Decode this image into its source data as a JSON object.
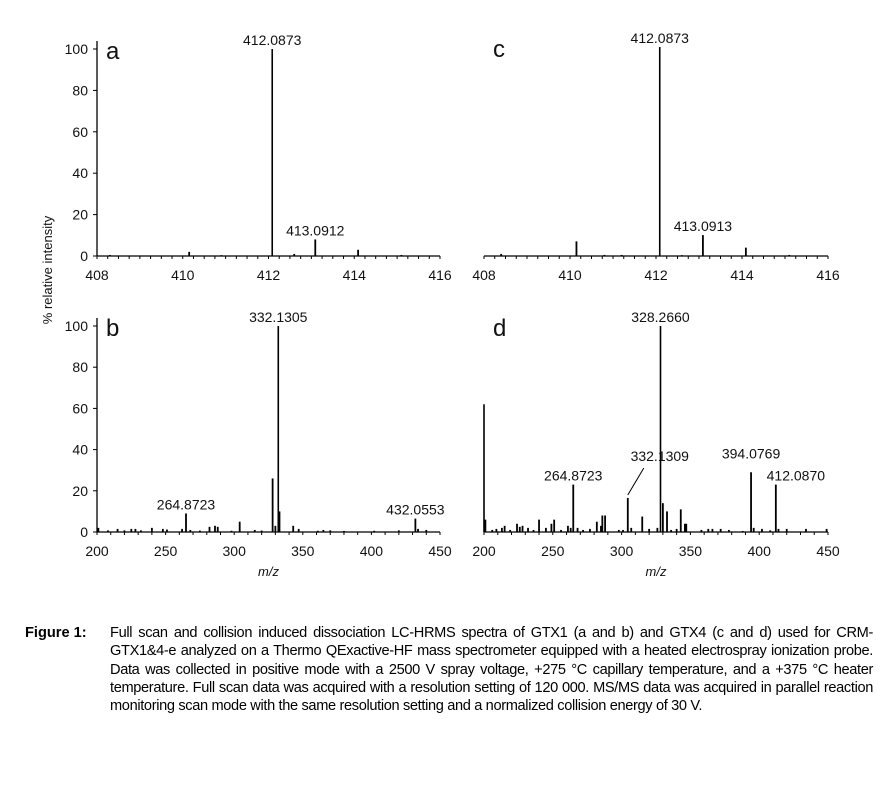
{
  "y_axis_label": "% relative intensity",
  "chart_data": [
    {
      "panel": "a",
      "type": "bar",
      "xlim": [
        408,
        416
      ],
      "ylim": [
        0,
        100
      ],
      "xticks": [
        "408",
        "410",
        "412",
        "414",
        "416"
      ],
      "yticks": [
        "0",
        "20",
        "40",
        "60",
        "80",
        "100"
      ],
      "xlabel": "",
      "ylabel": "% relative intensity",
      "peaks": [
        [
          408.3,
          0.5
        ],
        [
          410.15,
          2
        ],
        [
          410.9,
          0.4
        ],
        [
          412.087,
          100
        ],
        [
          412.6,
          1
        ],
        [
          413.091,
          8
        ],
        [
          414.09,
          3
        ],
        [
          415.1,
          0.5
        ]
      ],
      "annotations": [
        {
          "label": "412.0873",
          "x": 412.087,
          "y": 100
        },
        {
          "label": "413.0912",
          "x": 413.091,
          "y": 8
        }
      ]
    },
    {
      "panel": "c",
      "type": "bar",
      "xlim": [
        408,
        416
      ],
      "ylim": [
        0,
        100
      ],
      "xticks": [
        "408",
        "410",
        "412",
        "414",
        "416"
      ],
      "xlabel": "",
      "peaks": [
        [
          408.4,
          1
        ],
        [
          410.15,
          7
        ],
        [
          410.8,
          0.5
        ],
        [
          411.2,
          0.5
        ],
        [
          412.087,
          100
        ],
        [
          412.6,
          0.4
        ],
        [
          413.091,
          10
        ],
        [
          414.09,
          4
        ],
        [
          415.1,
          0.5
        ]
      ],
      "annotations": [
        {
          "label": "412.0873",
          "x": 412.087,
          "y": 100
        },
        {
          "label": "413.0913",
          "x": 413.091,
          "y": 10
        }
      ]
    },
    {
      "panel": "b",
      "type": "bar",
      "xlim": [
        200,
        450
      ],
      "ylim": [
        0,
        100
      ],
      "xticks": [
        "200",
        "250",
        "300",
        "350",
        "400",
        "450"
      ],
      "yticks": [
        "0",
        "20",
        "40",
        "60",
        "80",
        "100"
      ],
      "xlabel": "m/z",
      "peaks": [
        [
          201,
          2
        ],
        [
          208,
          0.8
        ],
        [
          215,
          1.5
        ],
        [
          220,
          0.8
        ],
        [
          225,
          1.5
        ],
        [
          228,
          1.5
        ],
        [
          232,
          0.8
        ],
        [
          240,
          2
        ],
        [
          248,
          1.5
        ],
        [
          251,
          1.2
        ],
        [
          262,
          1.5
        ],
        [
          264.87,
          9
        ],
        [
          268,
          1
        ],
        [
          275,
          0.7
        ],
        [
          282,
          2.5
        ],
        [
          286,
          3
        ],
        [
          288,
          2.5
        ],
        [
          298,
          0.6
        ],
        [
          304,
          5
        ],
        [
          315,
          1
        ],
        [
          320,
          0.7
        ],
        [
          328,
          26
        ],
        [
          330,
          3
        ],
        [
          332.13,
          100
        ],
        [
          333,
          10
        ],
        [
          343,
          3
        ],
        [
          347,
          1.5
        ],
        [
          361,
          0.6
        ],
        [
          365,
          1
        ],
        [
          370,
          0.8
        ],
        [
          380,
          0.5
        ],
        [
          402,
          0.6
        ],
        [
          420,
          0.8
        ],
        [
          432.06,
          6.5
        ],
        [
          434,
          1.5
        ],
        [
          440,
          1
        ]
      ],
      "annotations": [
        {
          "label": "264.8723",
          "x": 264.87,
          "y": 9
        },
        {
          "label": "332.1305",
          "x": 332.13,
          "y": 100
        },
        {
          "label": "432.0553",
          "x": 432.06,
          "y": 6.5
        }
      ]
    },
    {
      "panel": "d",
      "type": "bar",
      "xlim": [
        200,
        450
      ],
      "ylim": [
        0,
        100
      ],
      "xticks": [
        "200",
        "250",
        "300",
        "350",
        "400",
        "450"
      ],
      "xlabel": "m/z",
      "peaks": [
        [
          200,
          62
        ],
        [
          201,
          6
        ],
        [
          206,
          1
        ],
        [
          209,
          1.5
        ],
        [
          213,
          2
        ],
        [
          215,
          3
        ],
        [
          219,
          1
        ],
        [
          224,
          4
        ],
        [
          226,
          2.5
        ],
        [
          228,
          3
        ],
        [
          232,
          2
        ],
        [
          236,
          1
        ],
        [
          240,
          6
        ],
        [
          245,
          2
        ],
        [
          249,
          4
        ],
        [
          251,
          6
        ],
        [
          256,
          1
        ],
        [
          261,
          3
        ],
        [
          263,
          2
        ],
        [
          264.87,
          23
        ],
        [
          268,
          2
        ],
        [
          272,
          1
        ],
        [
          277,
          1.5
        ],
        [
          282,
          5
        ],
        [
          285,
          3
        ],
        [
          286,
          8
        ],
        [
          288,
          8
        ],
        [
          298,
          1
        ],
        [
          301,
          1
        ],
        [
          304.5,
          16.5
        ],
        [
          307,
          2
        ],
        [
          315,
          7.5
        ],
        [
          320,
          1.5
        ],
        [
          326,
          2
        ],
        [
          328.27,
          100
        ],
        [
          330,
          14
        ],
        [
          333,
          10
        ],
        [
          336,
          1
        ],
        [
          340,
          1.5
        ],
        [
          343,
          11
        ],
        [
          346,
          4
        ],
        [
          347,
          4
        ],
        [
          358,
          1
        ],
        [
          363,
          1.5
        ],
        [
          366,
          1.5
        ],
        [
          372,
          1.5
        ],
        [
          378,
          1
        ],
        [
          388,
          0.5
        ],
        [
          394.08,
          29
        ],
        [
          396,
          2
        ],
        [
          402,
          1.5
        ],
        [
          408,
          0.8
        ],
        [
          412.09,
          23
        ],
        [
          414,
          1.5
        ],
        [
          420,
          1.5
        ],
        [
          434,
          1.5
        ],
        [
          449,
          1.5
        ]
      ],
      "annotations": [
        {
          "label": "264.8723",
          "x": 264.87,
          "y": 23
        },
        {
          "label": "332.1309",
          "x": 304.5,
          "y": 16.5,
          "leader": true
        },
        {
          "label": "328.2660",
          "x": 328.27,
          "y": 100
        },
        {
          "label": "394.0769",
          "x": 394.08,
          "y": 29
        },
        {
          "label": "412.0870",
          "x": 412.09,
          "y": 23
        }
      ]
    }
  ],
  "caption": {
    "label": "Figure 1:",
    "text": "Full scan and collision induced dissociation LC-HRMS spectra of GTX1 (a and b) and GTX4 (c and d) used for CRM-GTX1&4-e analyzed on a Thermo QExactive-HF mass spectrometer equipped with a heated electrospray ionization probe. Data was collected in positive mode with a 2500 V spray voltage, +275 °C capillary temperature, and a +375 °C heater temperature. Full scan data was acquired with a resolution setting of 120 000. MS/MS data was acquired in parallel reaction monitoring scan mode with the same resolution setting and a normalized collision energy of 30 V."
  }
}
